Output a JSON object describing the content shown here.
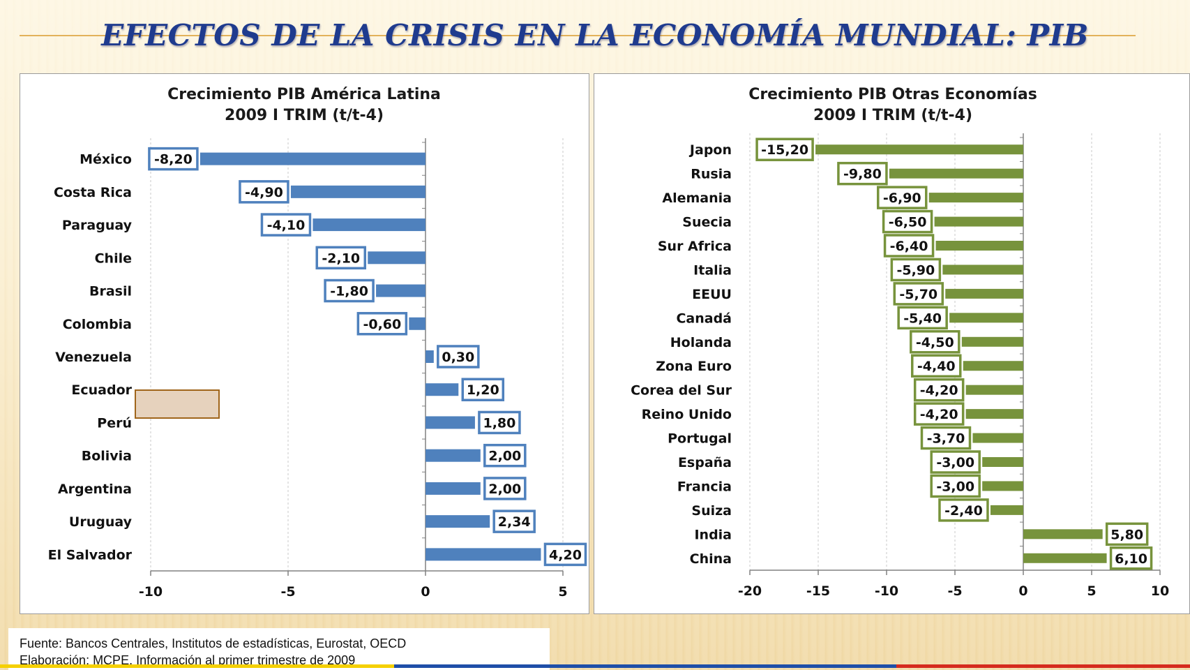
{
  "slide": {
    "title": "EFECTOS DE LA CRISIS EN LA ECONOMÍA MUNDIAL: PIB",
    "source_line1": "Fuente: Bancos Centrales, Institutos de estadísticas, Eurostat, OECD",
    "source_line2": "Elaboración: MCPE. Información al primer trimestre de 2009"
  },
  "colors": {
    "left_bar": "#4f81bd",
    "right_bar": "#77933c",
    "title_color": "#1f3b8e",
    "highlight_fill": "#e6d2bd",
    "highlight_border": "#a0651b"
  },
  "chart_data": [
    {
      "type": "bar",
      "orientation": "horizontal",
      "title": "Crecimiento PIB América Latina",
      "subtitle": "2009 I TRIM (t/t-4)",
      "categories": [
        "México",
        "Costa Rica",
        "Paraguay",
        "Chile",
        "Brasil",
        "Colombia",
        "Venezuela",
        "Ecuador",
        "Perú",
        "Bolivia",
        "Argentina",
        "Uruguay",
        "El Salvador"
      ],
      "values": [
        -8.2,
        -4.9,
        -4.1,
        -2.1,
        -1.8,
        -0.6,
        0.3,
        1.2,
        1.8,
        2.0,
        2.0,
        2.34,
        4.2
      ],
      "labels": [
        "-8,20",
        "-4,90",
        "-4,10",
        "-2,10",
        "-1,80",
        "-0,60",
        "0,30",
        "1,20",
        "1,80",
        "2,00",
        "2,00",
        "2,34",
        "4,20"
      ],
      "xlim": [
        -10,
        5
      ],
      "xticks": [
        -10,
        -5,
        0,
        5
      ],
      "grid": true,
      "bar_color": "#4f81bd"
    },
    {
      "type": "bar",
      "orientation": "horizontal",
      "title": "Crecimiento PIB Otras Economías",
      "subtitle": "2009 I TRIM (t/t-4)",
      "categories": [
        "Japon",
        "Rusia",
        "Alemania",
        "Suecia",
        "Sur Africa",
        "Italia",
        "EEUU",
        "Canadá",
        "Holanda",
        "Zona Euro",
        "Corea del Sur",
        "Reino Unido",
        "Portugal",
        "España",
        "Francia",
        "Suiza",
        "India",
        "China"
      ],
      "values": [
        -15.2,
        -9.8,
        -6.9,
        -6.5,
        -6.4,
        -5.9,
        -5.7,
        -5.4,
        -4.5,
        -4.4,
        -4.2,
        -4.2,
        -3.7,
        -3.0,
        -3.0,
        -2.4,
        5.8,
        6.1
      ],
      "labels": [
        "-15,20",
        "-9,80",
        "-6,90",
        "-6,50",
        "-6,40",
        "-5,90",
        "-5,70",
        "-5,40",
        "-4,50",
        "-4,40",
        "-4,20",
        "-4,20",
        "-3,70",
        "-3,00",
        "-3,00",
        "-2,40",
        "5,80",
        "6,10"
      ],
      "xlim": [
        -20,
        10
      ],
      "xticks": [
        -20,
        -15,
        -10,
        -5,
        0,
        5,
        10
      ],
      "grid": true,
      "bar_color": "#77933c"
    }
  ]
}
